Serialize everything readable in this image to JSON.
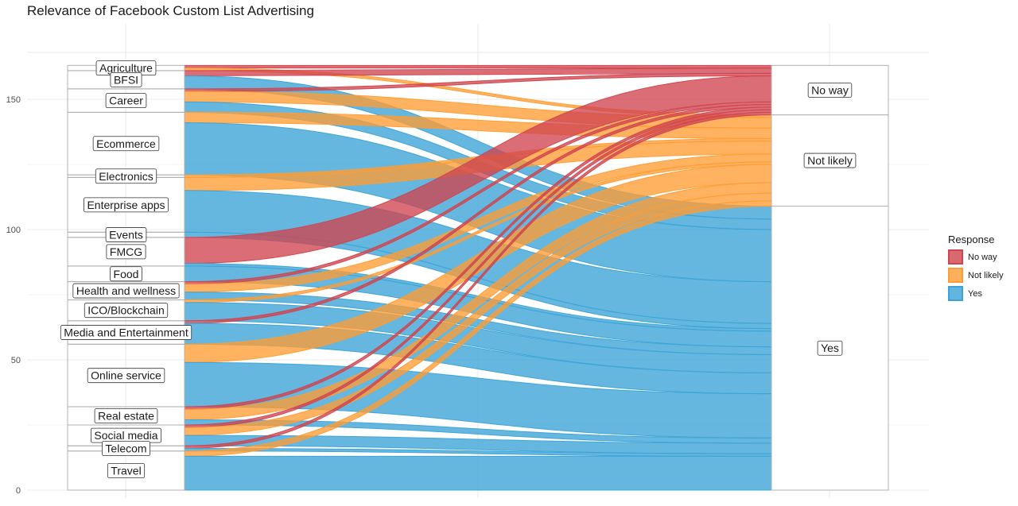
{
  "chart_data": {
    "type": "alluvial",
    "title": "Relevance of Facebook Custom List Advertising",
    "legend": {
      "title": "Response",
      "position": "right"
    },
    "grid": true,
    "ylim": [
      0,
      170
    ],
    "y_ticks": [
      0,
      50,
      100,
      150
    ],
    "colors": {
      "No way": "#D0444E",
      "Not likely": "#FF9C33",
      "Yes": "#3BA3D6"
    },
    "responses": [
      "No way",
      "Not likely",
      "Yes"
    ],
    "categories": [
      "Agriculture",
      "BFSI",
      "Career",
      "Ecommerce",
      "Electronics",
      "Enterprise apps",
      "Events",
      "FMCG",
      "Food",
      "Health and wellness",
      "ICO/Blockchain",
      "Media and Entertainment",
      "Online service",
      "Real estate",
      "Social media",
      "Telecom",
      "Travel"
    ],
    "counts": {
      "Agriculture": {
        "No way": 1,
        "Not likely": 1,
        "Yes": 0
      },
      "BFSI": {
        "No way": 2,
        "Not likely": 0,
        "Yes": 5
      },
      "Career": {
        "No way": 1,
        "Not likely": 4,
        "Yes": 4
      },
      "Ecommerce": {
        "No way": 0,
        "Not likely": 4,
        "Yes": 20
      },
      "Electronics": {
        "No way": 0,
        "Not likely": 1,
        "Yes": 0
      },
      "Enterprise apps": {
        "No way": 0,
        "Not likely": 5,
        "Yes": 16
      },
      "Events": {
        "No way": 0,
        "Not likely": 0,
        "Yes": 2
      },
      "FMCG": {
        "No way": 10,
        "Not likely": 0,
        "Yes": 1
      },
      "Food": {
        "No way": 0,
        "Not likely": 0,
        "Yes": 6
      },
      "Health and wellness": {
        "No way": 1,
        "Not likely": 3,
        "Yes": 3
      },
      "ICO/Blockchain": {
        "No way": 0,
        "Not likely": 1,
        "Yes": 7
      },
      "Media and Entertainment": {
        "No way": 1,
        "Not likely": 0,
        "Yes": 8
      },
      "Online service": {
        "No way": 0,
        "Not likely": 7,
        "Yes": 17
      },
      "Real estate": {
        "No way": 1,
        "Not likely": 4,
        "Yes": 2
      },
      "Social media": {
        "No way": 1,
        "Not likely": 3,
        "Yes": 4
      },
      "Telecom": {
        "No way": 1,
        "Not likely": 0,
        "Yes": 1
      },
      "Travel": {
        "No way": 0,
        "Not likely": 2,
        "Yes": 13
      }
    }
  }
}
